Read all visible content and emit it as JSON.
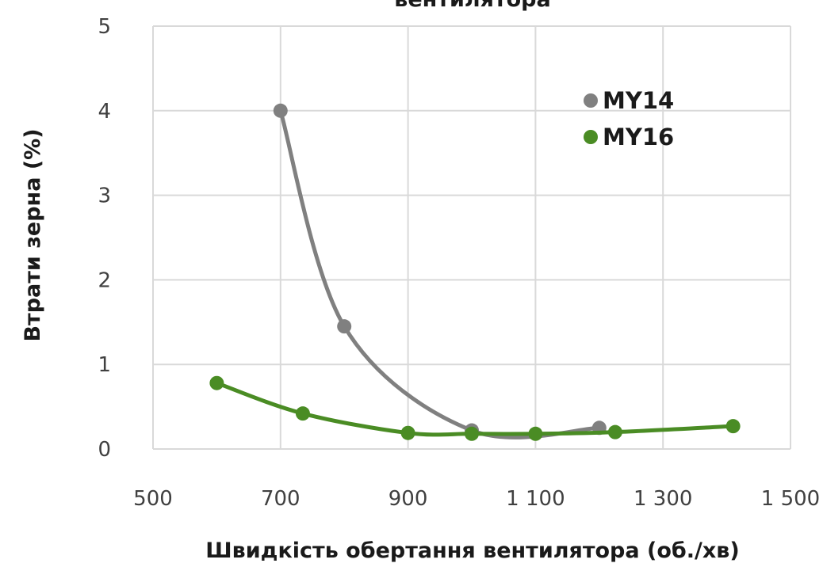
{
  "chart_data": {
    "type": "line",
    "title": "вентилятора",
    "xlabel": "Швидкість обертання вентилятора (об./хв)",
    "ylabel": "Втрати зерна (%)",
    "xlim": [
      500,
      1500
    ],
    "ylim": [
      0,
      5
    ],
    "x_ticks": [
      500,
      700,
      900,
      1100,
      1300,
      1500
    ],
    "x_tick_labels": [
      "500",
      "700",
      "900",
      "1 100",
      "1 300",
      "1 500"
    ],
    "y_ticks": [
      0,
      1,
      2,
      3,
      4,
      5
    ],
    "y_tick_labels": [
      "0",
      "1",
      "2",
      "3",
      "4",
      "5"
    ],
    "grid": true,
    "legend_position": "top-right",
    "series": [
      {
        "name": "MY14",
        "color": "#808080",
        "x": [
          700,
          800,
          1000,
          1200
        ],
        "y": [
          4.0,
          1.45,
          0.22,
          0.25
        ]
      },
      {
        "name": "MY16",
        "color": "#4a8c24",
        "x": [
          600,
          735,
          900,
          1000,
          1100,
          1225,
          1410
        ],
        "y": [
          0.78,
          0.42,
          0.19,
          0.18,
          0.18,
          0.2,
          0.27
        ]
      }
    ]
  }
}
